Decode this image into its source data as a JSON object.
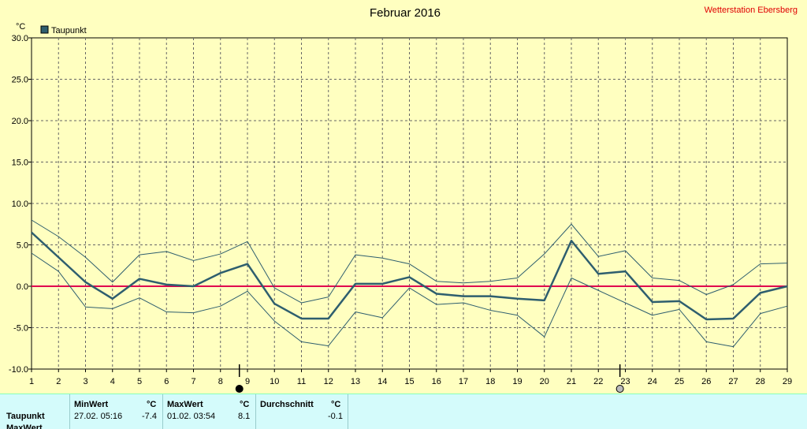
{
  "chart_data": {
    "type": "line",
    "title": "Februar 2016",
    "station": "Wetterstation Ebersberg",
    "ylabel": "°C",
    "legend": "Taupunkt",
    "ylim": [
      -10,
      30
    ],
    "yticks": [
      "30.0",
      "25.0",
      "20.0",
      "15.0",
      "10.0",
      "5.0",
      "0.0",
      "-5.0",
      "-10.0"
    ],
    "x": [
      1,
      2,
      3,
      4,
      5,
      6,
      7,
      8,
      9,
      10,
      11,
      12,
      13,
      14,
      15,
      16,
      17,
      18,
      19,
      20,
      21,
      22,
      23,
      24,
      25,
      26,
      27,
      28,
      29
    ],
    "series": [
      {
        "name": "Taupunkt",
        "values": [
          6.5,
          3.5,
          0.5,
          -1.5,
          0.9,
          0.2,
          0.0,
          1.6,
          2.7,
          -2.1,
          -3.9,
          -3.9,
          0.3,
          0.3,
          1.1,
          -0.9,
          -1.2,
          -1.2,
          -1.5,
          -1.7,
          5.5,
          1.5,
          1.8,
          -1.9,
          -1.8,
          -4.0,
          -3.9,
          -0.8,
          0.0
        ]
      },
      {
        "values": [
          8.0,
          6.0,
          3.5,
          0.5,
          3.8,
          4.2,
          3.1,
          3.9,
          5.4,
          -0.2,
          -2.0,
          -1.3,
          3.8,
          3.4,
          2.7,
          0.6,
          0.4,
          0.6,
          1.0,
          3.9,
          7.5,
          3.6,
          4.3,
          1.0,
          0.7,
          -1.0,
          0.2,
          2.7,
          2.8
        ]
      },
      {
        "values": [
          4.0,
          1.8,
          -2.5,
          -2.7,
          -1.4,
          -3.1,
          -3.2,
          -2.4,
          -0.6,
          -4.2,
          -6.7,
          -7.2,
          -3.1,
          -3.8,
          -0.2,
          -2.2,
          -2.0,
          -2.9,
          -3.5,
          -6.1,
          1.0,
          -0.5,
          -2.0,
          -3.5,
          -2.8,
          -6.7,
          -7.3,
          -3.3,
          -2.4
        ]
      }
    ],
    "zero_line_color": "#e0004f",
    "series_color": "#2e5e6e",
    "moon_markers": [
      {
        "day": 8.7,
        "phase": "new"
      },
      {
        "day": 22.8,
        "phase": "full"
      }
    ]
  },
  "stats": {
    "row_label": "Taupunkt",
    "row2_label": "MaxWert",
    "min_header": "MinWert",
    "max_header": "MaxWert",
    "avg_header": "Durchschnitt",
    "unit": "°C",
    "min_time": "27.02.  05:16",
    "min_value": "-7.4",
    "max_time": "01.02.  03:54",
    "max_value": "8.1",
    "avg_value": "-0.1"
  }
}
